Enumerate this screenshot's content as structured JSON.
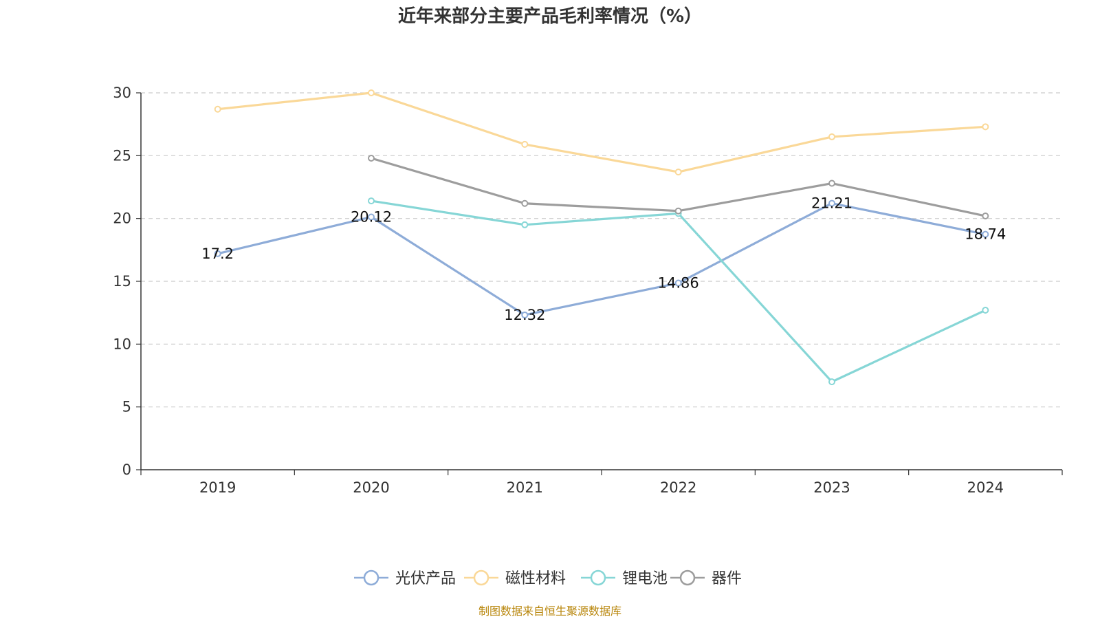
{
  "chart_data": {
    "type": "line",
    "title": "近年来部分主要产品毛利率情况（%）",
    "xlabel": "",
    "ylabel": "",
    "categories": [
      "2019",
      "2020",
      "2021",
      "2022",
      "2023",
      "2024"
    ],
    "ylim": [
      0,
      30
    ],
    "yticks": [
      "0",
      "5",
      "10",
      "15",
      "20",
      "25",
      "30"
    ],
    "grid": true,
    "legend_position": "bottom-center",
    "series": [
      {
        "name": "光伏产品",
        "color": "#8eacd8",
        "values": [
          17.2,
          20.12,
          12.32,
          14.86,
          21.21,
          18.74
        ],
        "labels": [
          "17.2",
          "20.12",
          "12.32",
          "14.86",
          "21.21",
          "18.74"
        ]
      },
      {
        "name": "磁性材料",
        "color": "#fad898",
        "values": [
          28.7,
          30.0,
          25.9,
          23.7,
          26.5,
          27.3
        ],
        "labels": []
      },
      {
        "name": "锂电池",
        "color": "#86d6d6",
        "values": [
          null,
          21.4,
          19.5,
          20.4,
          7.0,
          12.7
        ],
        "labels": []
      },
      {
        "name": "器件",
        "color": "#9d9d9d",
        "values": [
          null,
          24.8,
          21.2,
          20.6,
          22.8,
          20.2
        ],
        "labels": []
      }
    ],
    "source": "制图数据来自恒生聚源数据库"
  }
}
